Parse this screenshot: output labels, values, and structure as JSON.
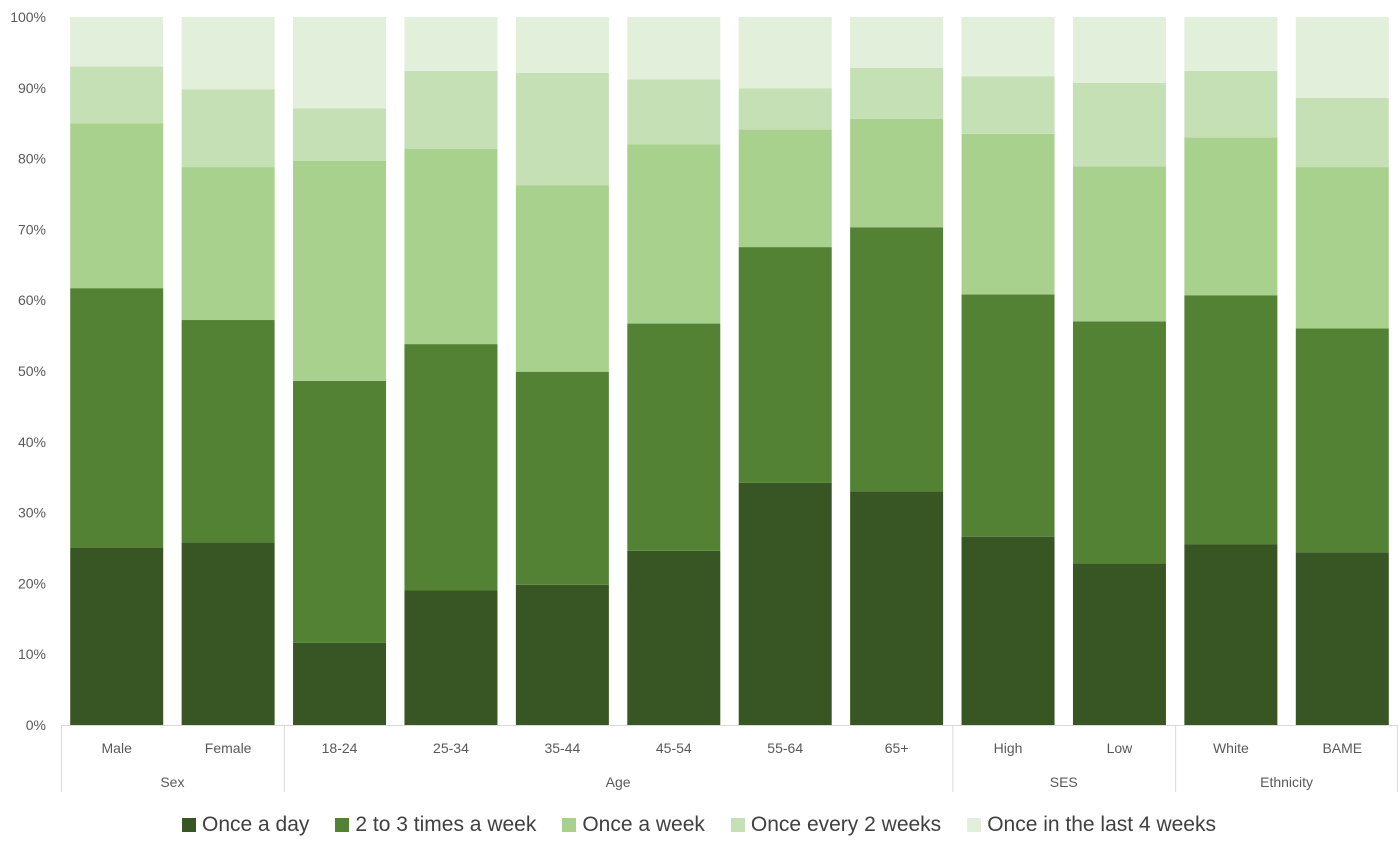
{
  "chart_data": {
    "type": "bar",
    "stacked": true,
    "percent": true,
    "title": "",
    "xlabel": "",
    "ylabel": "",
    "ylim": [
      0,
      100
    ],
    "yticks": [
      "0%",
      "10%",
      "20%",
      "30%",
      "40%",
      "50%",
      "60%",
      "70%",
      "80%",
      "90%",
      "100%"
    ],
    "categories": [
      "Male",
      "Female",
      "18-24",
      "25-34",
      "35-44",
      "45-54",
      "55-64",
      "65+",
      "High",
      "Low",
      "White",
      "BAME"
    ],
    "groups": [
      {
        "label": "Sex",
        "start": 0,
        "end": 1
      },
      {
        "label": "Age",
        "start": 2,
        "end": 7
      },
      {
        "label": "SES",
        "start": 8,
        "end": 9
      },
      {
        "label": "Ethnicity",
        "start": 10,
        "end": 11
      }
    ],
    "series": [
      {
        "name": "Once a day",
        "color": "#375623",
        "values": [
          25.0,
          25.8,
          11.6,
          19.0,
          19.8,
          24.6,
          34.2,
          33.0,
          26.6,
          22.8,
          25.5,
          24.4
        ]
      },
      {
        "name": "2 to 3 times a week",
        "color": "#548235",
        "values": [
          36.7,
          31.4,
          37.0,
          34.8,
          30.1,
          32.1,
          33.3,
          37.3,
          34.2,
          34.2,
          35.2,
          31.6
        ]
      },
      {
        "name": "Once a week",
        "color": "#a9d18e",
        "values": [
          23.3,
          21.6,
          31.1,
          27.6,
          26.3,
          25.3,
          16.6,
          15.3,
          22.7,
          21.9,
          22.3,
          22.8
        ]
      },
      {
        "name": "Once every 2 weeks",
        "color": "#c5e0b4",
        "values": [
          8.0,
          11.0,
          7.4,
          11.0,
          15.9,
          9.2,
          5.8,
          7.2,
          8.1,
          11.8,
          9.4,
          9.8
        ]
      },
      {
        "name": "Once in the last 4 weeks",
        "color": "#e2efda",
        "values": [
          7.0,
          10.2,
          12.9,
          7.6,
          7.9,
          8.8,
          10.1,
          7.2,
          8.4,
          9.3,
          7.6,
          11.4
        ]
      }
    ]
  }
}
